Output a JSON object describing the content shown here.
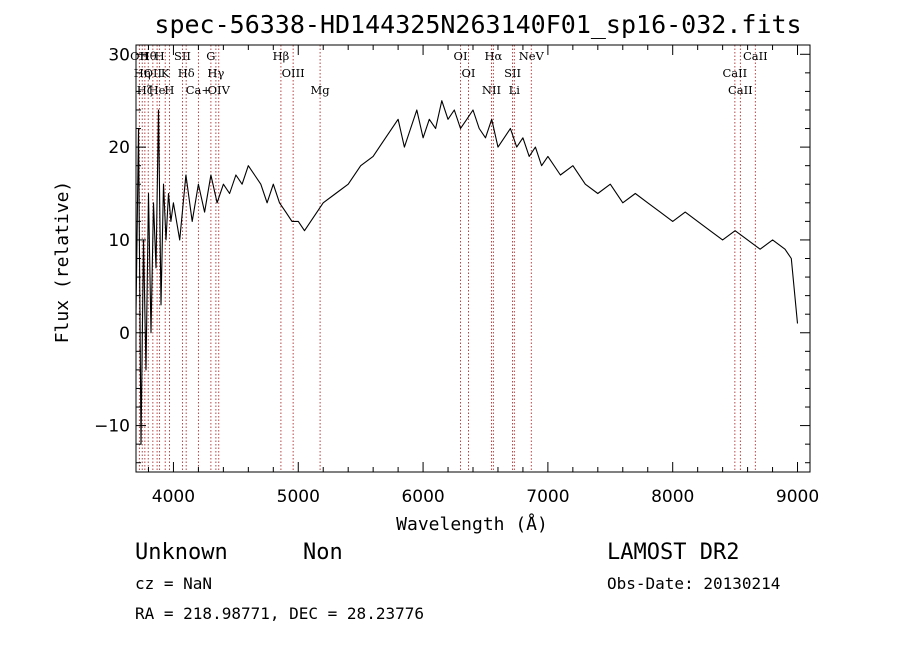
{
  "chart_data": {
    "type": "line",
    "title": "spec-56338-HD144325N263140F01_sp16-032.fits",
    "xlabel": "Wavelength (Å)",
    "ylabel": "Flux (relative)",
    "xlim": [
      3700,
      9100
    ],
    "ylim": [
      -15,
      31
    ],
    "x_ticks": [
      4000,
      5000,
      6000,
      7000,
      8000,
      9000
    ],
    "y_ticks": [
      -10,
      0,
      10,
      20,
      30
    ],
    "grid": false,
    "series": [
      {
        "color": "#000000",
        "x": [
          3700,
          3720,
          3740,
          3760,
          3780,
          3800,
          3820,
          3840,
          3860,
          3880,
          3900,
          3920,
          3940,
          3960,
          3980,
          4000,
          4050,
          4100,
          4150,
          4200,
          4250,
          4300,
          4350,
          4400,
          4450,
          4500,
          4550,
          4600,
          4650,
          4700,
          4750,
          4800,
          4850,
          4900,
          4950,
          5000,
          5050,
          5100,
          5150,
          5200,
          5300,
          5400,
          5500,
          5600,
          5700,
          5800,
          5850,
          5900,
          5950,
          6000,
          6050,
          6100,
          6150,
          6200,
          6250,
          6300,
          6350,
          6400,
          6450,
          6500,
          6550,
          6600,
          6650,
          6700,
          6750,
          6800,
          6850,
          6900,
          6950,
          7000,
          7100,
          7200,
          7300,
          7400,
          7500,
          7600,
          7700,
          7800,
          7900,
          8000,
          8100,
          8200,
          8300,
          8400,
          8500,
          8600,
          8700,
          8800,
          8900,
          8950,
          9000
        ],
        "y": [
          2,
          22,
          -12,
          10,
          -4,
          15,
          0,
          14,
          7,
          24,
          3,
          16,
          10,
          15,
          12,
          14,
          10,
          17,
          12,
          16,
          13,
          17,
          14,
          16,
          15,
          17,
          16,
          18,
          17,
          16,
          14,
          16,
          14,
          13,
          12,
          12,
          11,
          12,
          13,
          14,
          15,
          16,
          18,
          19,
          21,
          23,
          20,
          22,
          24,
          21,
          23,
          22,
          25,
          23,
          24,
          22,
          23,
          24,
          22,
          21,
          23,
          20,
          21,
          22,
          20,
          21,
          19,
          20,
          18,
          19,
          17,
          18,
          16,
          15,
          16,
          14,
          15,
          14,
          13,
          12,
          13,
          12,
          11,
          10,
          11,
          10,
          9,
          10,
          9,
          8,
          1
        ]
      }
    ],
    "line_markers": [
      {
        "w": 3727,
        "label": "OII"
      },
      {
        "w": 3750,
        "label": "Hη"
      },
      {
        "w": 3771,
        "label": "Hζ"
      },
      {
        "w": 3798,
        "label": "Hθ"
      },
      {
        "w": 3835,
        "label": "OII"
      },
      {
        "w": 3869,
        "label": "He"
      },
      {
        "w": 3889,
        "label": "H"
      },
      {
        "w": 3934,
        "label": "K"
      },
      {
        "w": 3968,
        "label": "H"
      },
      {
        "w": 4072,
        "label": "SII"
      },
      {
        "w": 4102,
        "label": "Hδ"
      },
      {
        "w": 4200,
        "label": "Ca+"
      },
      {
        "w": 4300,
        "label": "G"
      },
      {
        "w": 4340,
        "label": "Hγ"
      },
      {
        "w": 4363,
        "label": "OIV"
      },
      {
        "w": 4861,
        "label": "Hβ"
      },
      {
        "w": 4959,
        "label": "OIII"
      },
      {
        "w": 5175,
        "label": "Mg"
      },
      {
        "w": 6300,
        "label": "OI"
      },
      {
        "w": 6364,
        "label": "OI"
      },
      {
        "w": 6548,
        "label": "NII"
      },
      {
        "w": 6563,
        "label": "Hα"
      },
      {
        "w": 6717,
        "label": "SII"
      },
      {
        "w": 6731,
        "label": "Li"
      },
      {
        "w": 6867,
        "label": "NeV"
      },
      {
        "w": 8498,
        "label": "CaII"
      },
      {
        "w": 8542,
        "label": "CaII"
      },
      {
        "w": 8662,
        "label": "CaII"
      }
    ]
  },
  "info": {
    "class_label": "Unknown",
    "subclass_label": "Non",
    "survey_label": "LAMOST DR2",
    "cz_text": "cz = NaN",
    "obs_date_text": "Obs-Date: 20130214",
    "coords_text": "RA = 218.98771, DEC =  28.23776"
  }
}
